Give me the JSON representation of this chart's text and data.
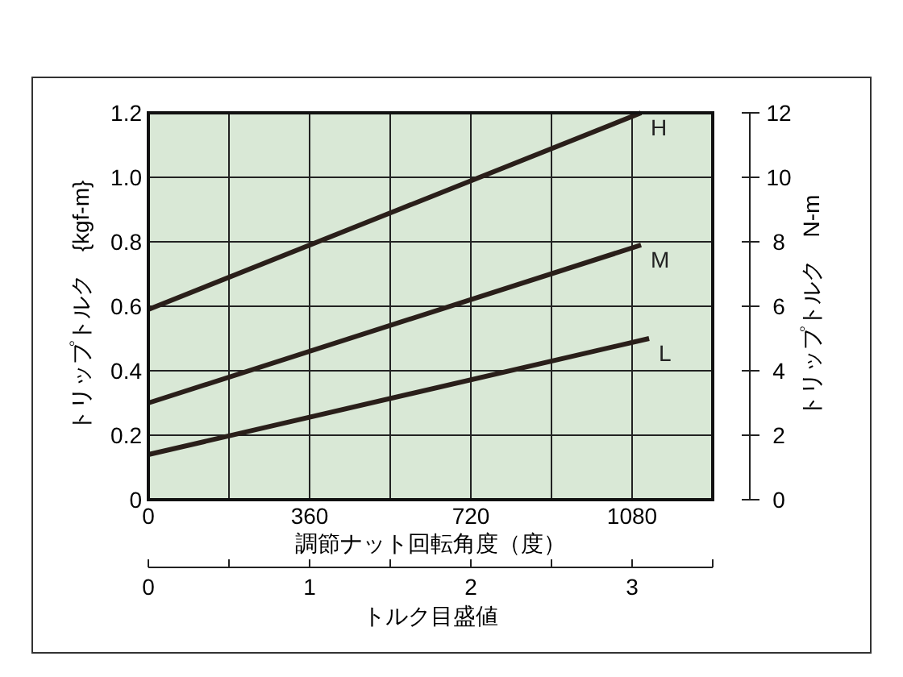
{
  "chart_data": {
    "type": "line",
    "xlabel": "調節ナット回転角度（度）",
    "ylabel": "トリップトルク　{kgf-m}",
    "y2label": "トリップトルク　N-m",
    "x2label": "トルク目盛値",
    "xlim": [
      0,
      1260
    ],
    "xticks": [
      0,
      {
        "value": 180,
        "label": null
      },
      360,
      {
        "value": 540,
        "label": null
      },
      720,
      {
        "value": 900,
        "label": null
      },
      1080
    ],
    "ylim": [
      0,
      1.2
    ],
    "yticks": [
      0,
      0.2,
      0.4,
      0.6,
      0.8,
      {
        "value": 1,
        "label": "1.0"
      },
      1.2
    ],
    "y2lim": [
      0,
      12
    ],
    "y2ticks": [
      0,
      2,
      4,
      6,
      8,
      10,
      12
    ],
    "x2lim": [
      0,
      3.5
    ],
    "x2ticks": [
      0,
      {
        "value": 0.5,
        "label": null
      },
      1,
      {
        "value": 1.5,
        "label": null
      },
      2,
      {
        "value": 2.5,
        "label": null
      },
      3,
      {
        "value": 3.5,
        "label": null
      }
    ],
    "grid": true,
    "legend": false,
    "marker": "none",
    "line_style": "solid",
    "series": [
      {
        "name": "H",
        "color": "#2a1f1a",
        "x": [
          0,
          1100
        ],
        "values": [
          0.59,
          1.2
        ]
      },
      {
        "name": "M",
        "color": "#2a1f1a",
        "x": [
          0,
          1100
        ],
        "values": [
          0.3,
          0.79
        ]
      },
      {
        "name": "L",
        "color": "#2a1f1a",
        "x": [
          0,
          1118
        ],
        "values": [
          0.14,
          0.5
        ]
      }
    ]
  }
}
